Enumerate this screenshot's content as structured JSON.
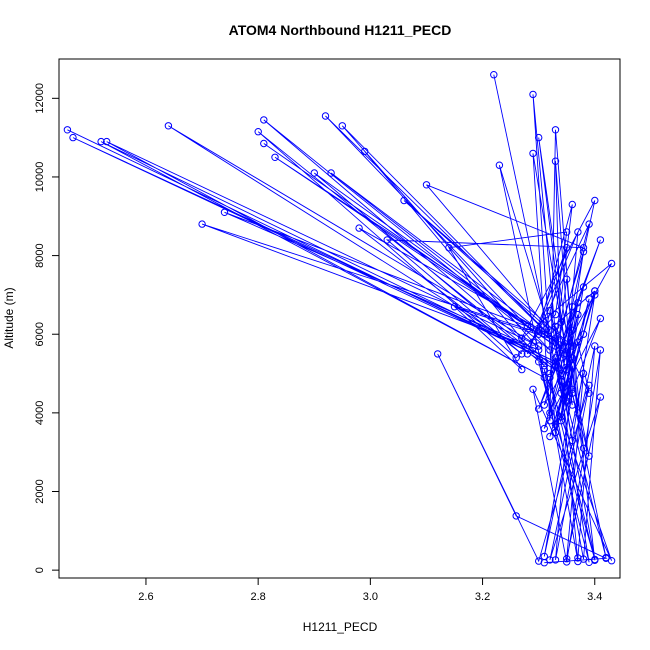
{
  "chart_data": {
    "type": "line",
    "title": "ATOM4 Northbound H1211_PECD",
    "xlabel": "H1211_PECD",
    "ylabel": "Altitude (m)",
    "xlim": [
      2.445,
      3.445
    ],
    "ylim": [
      -200,
      13000
    ],
    "xticks": [
      "2.6",
      "2.8",
      "3.0",
      "3.2",
      "3.4"
    ],
    "yticks": [
      "0",
      "2000",
      "4000",
      "6000",
      "8000",
      "10000",
      "12000"
    ],
    "grid": false,
    "legend": "none",
    "marker": "open-circle",
    "color": "#0000ff",
    "series": [
      {
        "x": [
          3.31,
          3.42,
          3.26,
          3.12,
          3.3,
          3.39,
          3.33,
          3.36,
          3.4,
          3.32,
          3.38,
          3.41,
          3.35,
          3.29,
          3.43,
          3.31,
          3.37,
          3.34,
          3.4,
          3.3,
          3.39,
          3.33,
          3.42,
          3.36,
          3.31,
          3.38,
          3.35,
          3.41,
          3.32,
          3.4,
          3.37
        ],
        "y": [
          190,
          300,
          1380,
          5500,
          230,
          4700,
          260,
          5200,
          250,
          4900,
          280,
          5600,
          210,
          4600,
          240,
          5100,
          220,
          4800,
          270,
          5300,
          200,
          5400,
          320,
          4500,
          350,
          5000,
          290,
          4400,
          260,
          5700,
          310
        ]
      },
      {
        "x": [
          3.38,
          3.35,
          3.34,
          3.39,
          3.32,
          3.36,
          3.4,
          3.33,
          3.37,
          3.31,
          3.41,
          3.34,
          3.38,
          3.3,
          3.36,
          3.35,
          3.39,
          3.33,
          3.37,
          3.32,
          3.4,
          3.34,
          3.36,
          3.31,
          3.38,
          3.35,
          3.33,
          3.39,
          3.37,
          3.32
        ],
        "y": [
          3100,
          7400,
          6300,
          2900,
          6600,
          3300,
          7000,
          3500,
          6800,
          3600,
          6400,
          3800,
          7200,
          4100,
          6100,
          4300,
          6900,
          3700,
          6500,
          4000,
          7100,
          3900,
          6700,
          4200,
          6000,
          4400,
          6200,
          4500,
          5800,
          3400
        ]
      },
      {
        "x": [
          3.22,
          3.34,
          3.29,
          3.33,
          3.23,
          3.36,
          3.3,
          3.37,
          3.33,
          3.32,
          3.29,
          3.36,
          3.33,
          3.34,
          3.4,
          3.27,
          3.43,
          3.33,
          3.41,
          3.32,
          3.39,
          3.3,
          3.36,
          3.33,
          3.38,
          3.35,
          3.37,
          3.28,
          3.35,
          3.31,
          3.4
        ],
        "y": [
          12600,
          4500,
          12100,
          3500,
          10300,
          4200,
          11000,
          4000,
          11200,
          3800,
          10600,
          4600,
          10400,
          5400,
          9400,
          5900,
          7800,
          5200,
          8400,
          5000,
          8800,
          6100,
          9300,
          5700,
          8100,
          5300,
          8600,
          5500,
          8200,
          6000,
          7100
        ]
      },
      {
        "x": [
          2.46,
          3.35,
          2.47,
          3.33,
          2.52,
          3.31,
          2.53,
          3.3,
          2.64,
          3.34,
          2.81,
          3.32,
          2.92,
          3.36,
          2.95,
          3.29,
          2.99,
          3.31,
          2.9,
          3.35,
          2.81,
          3.3,
          2.83,
          3.33,
          2.93,
          3.28,
          2.74,
          3.3,
          2.7,
          3.33,
          2.98,
          3.27,
          3.03,
          3.38,
          3.1,
          3.32,
          3.06,
          3.36,
          3.15,
          3.27,
          3.14,
          3.35,
          3.33,
          3.26,
          2.8,
          3.31
        ],
        "y": [
          11200,
          5100,
          11000,
          5300,
          10900,
          4900,
          10900,
          5700,
          11300,
          5000,
          11450,
          5600,
          11550,
          5400,
          11300,
          5800,
          10650,
          5200,
          10100,
          5500,
          10850,
          6000,
          10500,
          5800,
          10100,
          6200,
          9100,
          5600,
          8800,
          5900,
          8700,
          5500,
          8400,
          8200,
          9800,
          6100,
          9400,
          5700,
          6700,
          5100,
          8200,
          8600,
          6500,
          5400,
          11150,
          5300
        ]
      }
    ]
  }
}
